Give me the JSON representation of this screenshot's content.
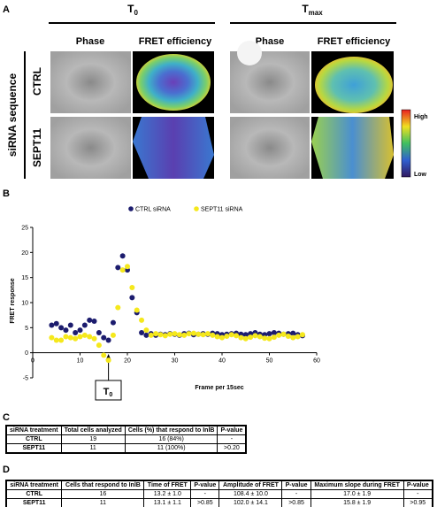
{
  "panel_a": {
    "letter": "A",
    "headers": [
      {
        "main": "T",
        "sub": "0"
      },
      {
        "main": "T",
        "sub": "max"
      }
    ],
    "column_labels": [
      "Phase",
      "FRET efficiency",
      "Phase",
      "FRET efficiency"
    ],
    "row_group_label": "siRNA sequence",
    "row_labels": [
      "CTRL",
      "SEPT11"
    ],
    "scale_labels": [
      "High",
      "Low"
    ]
  },
  "chart_data": {
    "type": "scatter",
    "letter": "B",
    "y_label": "FRET response",
    "x_label": "Frame per 15sec",
    "annotation": {
      "main": "T",
      "sub": "0"
    },
    "x": [
      4,
      5,
      6,
      7,
      8,
      9,
      10,
      11,
      12,
      13,
      14,
      15,
      16,
      17,
      18,
      19,
      20,
      21,
      22,
      23,
      24,
      25,
      26,
      27,
      28,
      29,
      30,
      31,
      32,
      33,
      34,
      35,
      36,
      37,
      38,
      39,
      40,
      41,
      42,
      43,
      44,
      45,
      46,
      47,
      48,
      49,
      50,
      51,
      52,
      53,
      54,
      55,
      56,
      57
    ],
    "series": [
      {
        "name": "CTRL siRNA",
        "color": "#1c1c6e",
        "values": [
          5.5,
          5.8,
          5,
          4.5,
          5.5,
          4,
          4.5,
          5.5,
          6.5,
          6.3,
          4,
          3,
          2.5,
          6,
          17,
          19.3,
          16.5,
          11,
          8,
          4,
          3.5,
          3.8,
          3.5,
          3.7,
          3.6,
          3.8,
          3.7,
          3.5,
          3.8,
          3.9,
          3.6,
          3.7,
          3.8,
          3.7,
          3.9,
          3.8,
          3.6,
          3.7,
          3.8,
          3.9,
          3.7,
          3.6,
          3.8,
          4.0,
          3.7,
          3.6,
          3.8,
          4.0,
          3.9,
          3.7,
          3.8,
          3.9,
          3.6,
          3.4
        ]
      },
      {
        "name": "SEPT11 siRNA",
        "color": "#f5e81c",
        "values": [
          3,
          2.5,
          2.5,
          3.2,
          3,
          2.8,
          3.2,
          3.5,
          3.2,
          2.8,
          1.5,
          -0.5,
          -1.5,
          3.5,
          9,
          16.5,
          17.2,
          13,
          8.5,
          6.5,
          4.5,
          3.5,
          3.8,
          3.6,
          3.4,
          3.7,
          3.8,
          3.6,
          3.5,
          3.8,
          3.9,
          3.7,
          3.6,
          3.8,
          3.5,
          3.2,
          3.0,
          3.3,
          3.6,
          3.4,
          3.0,
          2.8,
          3.1,
          3.4,
          3.2,
          2.9,
          2.8,
          3.1,
          3.5,
          3.7,
          3.3,
          3.0,
          3.2,
          3.6
        ]
      }
    ],
    "xlim": [
      0,
      60
    ],
    "xticks": [
      0,
      10,
      20,
      30,
      40,
      50,
      60
    ],
    "ylim": [
      -5,
      25
    ],
    "yticks": [
      -5,
      0,
      5,
      10,
      15,
      20,
      25
    ],
    "grid": false
  },
  "table_c": {
    "letter": "C",
    "header": [
      "siRNA treatment",
      "Total cells analyzed",
      "Cells (%) that respond to InlB",
      "P-value"
    ],
    "rows": [
      [
        "CTRL",
        "19",
        "16 (84%)",
        "-"
      ],
      [
        "SEPT11",
        "11",
        "11 (100%)",
        ">0.20"
      ]
    ]
  },
  "table_d": {
    "letter": "D",
    "header": [
      "siRNA treatment",
      "Cells that respond to InlB",
      "Time of FRET",
      "P-value",
      "Amplitude of FRET",
      "P-value",
      "Maximum slope during FRET",
      "P-value"
    ],
    "rows": [
      [
        "CTRL",
        "16",
        "13.2 ± 1.0",
        "-",
        "108.4 ± 10.0",
        "-",
        "17.0 ± 1.9",
        "-"
      ],
      [
        "SEPT11",
        "11",
        "13.1 ± 1.1",
        ">0.85",
        "102.0 ± 14.1",
        ">0.85",
        "15.8 ± 1.9",
        ">0.95"
      ]
    ]
  }
}
